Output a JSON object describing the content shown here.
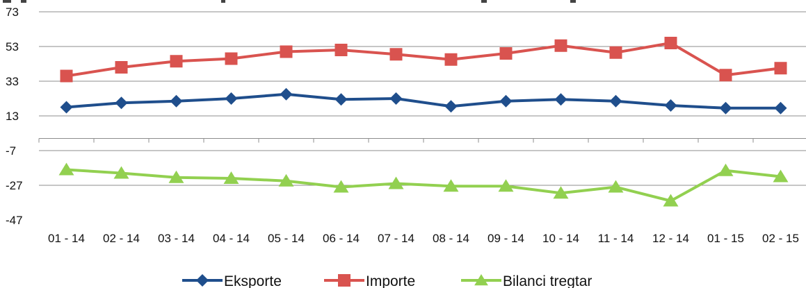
{
  "chart_data": {
    "type": "line",
    "title": "",
    "xlabel": "",
    "ylabel": "",
    "categories": [
      "01 - 14",
      "02 - 14",
      "03 - 14",
      "04 - 14",
      "05 - 14",
      "06 - 14",
      "07 - 14",
      "08 - 14",
      "09 - 14",
      "10 - 14",
      "11 - 14",
      "12 - 14",
      "01 - 15",
      "02 - 15"
    ],
    "y_ticks": [
      73,
      53,
      33,
      13,
      -7,
      -27,
      -47
    ],
    "ylim": [
      -47,
      73
    ],
    "grid": "horizontal",
    "legend_position": "bottom",
    "series": [
      {
        "name": "Eksporte",
        "color": "#1f4e8c",
        "marker": "diamond",
        "values": [
          18,
          20.5,
          21.5,
          23,
          25.5,
          22.5,
          23,
          18.5,
          21.5,
          22.5,
          21.5,
          19,
          17.5,
          17.5
        ]
      },
      {
        "name": "Importe",
        "color": "#d9534f",
        "marker": "square",
        "values": [
          36,
          41,
          44.5,
          46,
          50,
          51,
          48.5,
          45.5,
          49,
          53.5,
          49.5,
          55,
          36.5,
          40.5
        ]
      },
      {
        "name": "Bilanci tregtar",
        "color": "#92d050",
        "marker": "triangle",
        "values": [
          -18,
          -20,
          -22.5,
          -23,
          -24.5,
          -28,
          -26,
          -27.5,
          -27.5,
          -31.5,
          -28,
          -36,
          -18.5,
          -22
        ]
      }
    ]
  }
}
